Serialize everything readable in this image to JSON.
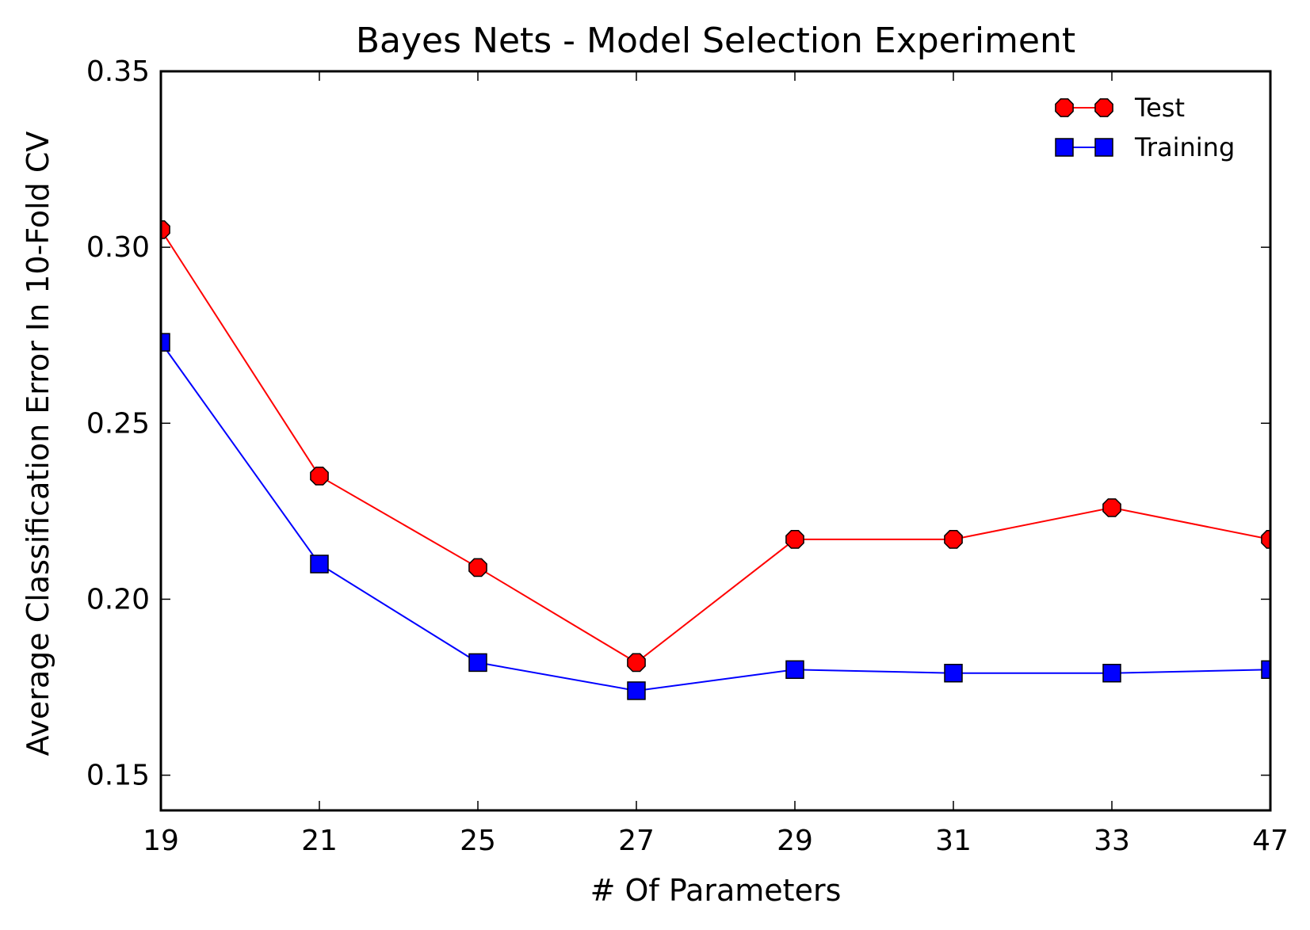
{
  "chart_data": {
    "type": "line",
    "title": "Bayes Nets - Model Selection Experiment",
    "xlabel": "# Of Parameters",
    "ylabel": "Average Classification Error In 10-Fold CV",
    "categories": [
      "19",
      "21",
      "25",
      "27",
      "29",
      "31",
      "33",
      "47"
    ],
    "y_ticks": [
      "0.15",
      "0.20",
      "0.25",
      "0.30",
      "0.35"
    ],
    "ylim": [
      0.14,
      0.35
    ],
    "grid": false,
    "legend_position": "top-right",
    "series": [
      {
        "name": "Test",
        "color": "#ff0000",
        "marker": "octagon",
        "values": [
          0.305,
          0.235,
          0.209,
          0.182,
          0.217,
          0.217,
          0.226,
          0.217
        ]
      },
      {
        "name": "Training",
        "color": "#0000ff",
        "marker": "square",
        "values": [
          0.273,
          0.21,
          0.182,
          0.174,
          0.18,
          0.179,
          0.179,
          0.18
        ]
      }
    ]
  }
}
